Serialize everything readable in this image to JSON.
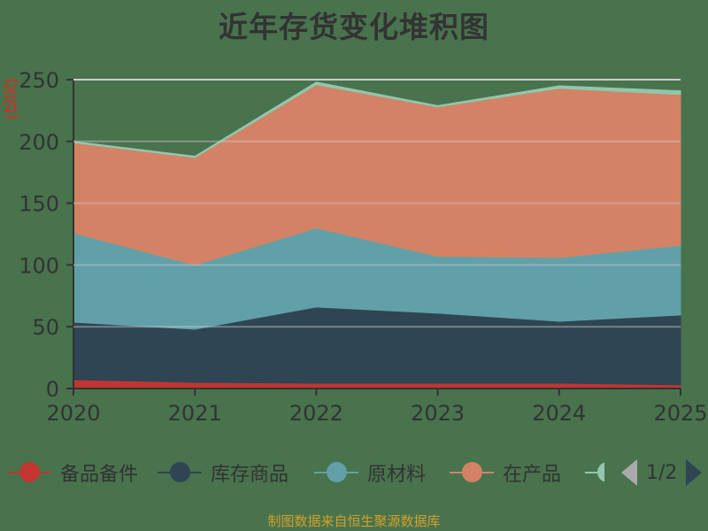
{
  "title": "近年存货变化堆积图",
  "unit_label": "(亿元)",
  "source_text": "制图数据来自恒生聚源数据库",
  "legend": {
    "items": [
      {
        "label": "备品备件",
        "color": "#c23531"
      },
      {
        "label": "库存商品",
        "color": "#2f4554"
      },
      {
        "label": "原材料",
        "color": "#61a0a8"
      },
      {
        "label": "在产品",
        "color": "#d48265"
      }
    ],
    "partial_item_color": "#91c7ae",
    "page_text": "1/2"
  },
  "chart_data": {
    "type": "area",
    "stacked": true,
    "title": "近年存货变化堆积图",
    "xlabel": "",
    "ylabel": "(亿元)",
    "categories": [
      "2020",
      "2021",
      "2022",
      "2023",
      "2024",
      "2025"
    ],
    "ylim": [
      0,
      250
    ],
    "yticks": [
      0,
      50,
      100,
      150,
      200,
      250
    ],
    "grid": true,
    "legend_position": "bottom",
    "series": [
      {
        "name": "备品备件",
        "color": "#c23531",
        "values": [
          7.2,
          5.0,
          4.3,
          4.3,
          4.3,
          3.0
        ]
      },
      {
        "name": "库存商品",
        "color": "#2f4554",
        "values": [
          46.5,
          43.0,
          61.7,
          56.7,
          50.1,
          56.5
        ]
      },
      {
        "name": "原材料",
        "color": "#61a0a8",
        "values": [
          72.3,
          52.0,
          64.0,
          46.0,
          51.6,
          56.5
        ]
      },
      {
        "name": "在产品",
        "color": "#d48265",
        "values": [
          73.0,
          87.0,
          116.0,
          121.0,
          137.0,
          122.0
        ]
      },
      {
        "name": "(第5项,图例第2页)",
        "color": "#91c7ae",
        "values": [
          1.0,
          1.0,
          2.0,
          1.0,
          2.0,
          3.0
        ]
      }
    ]
  }
}
